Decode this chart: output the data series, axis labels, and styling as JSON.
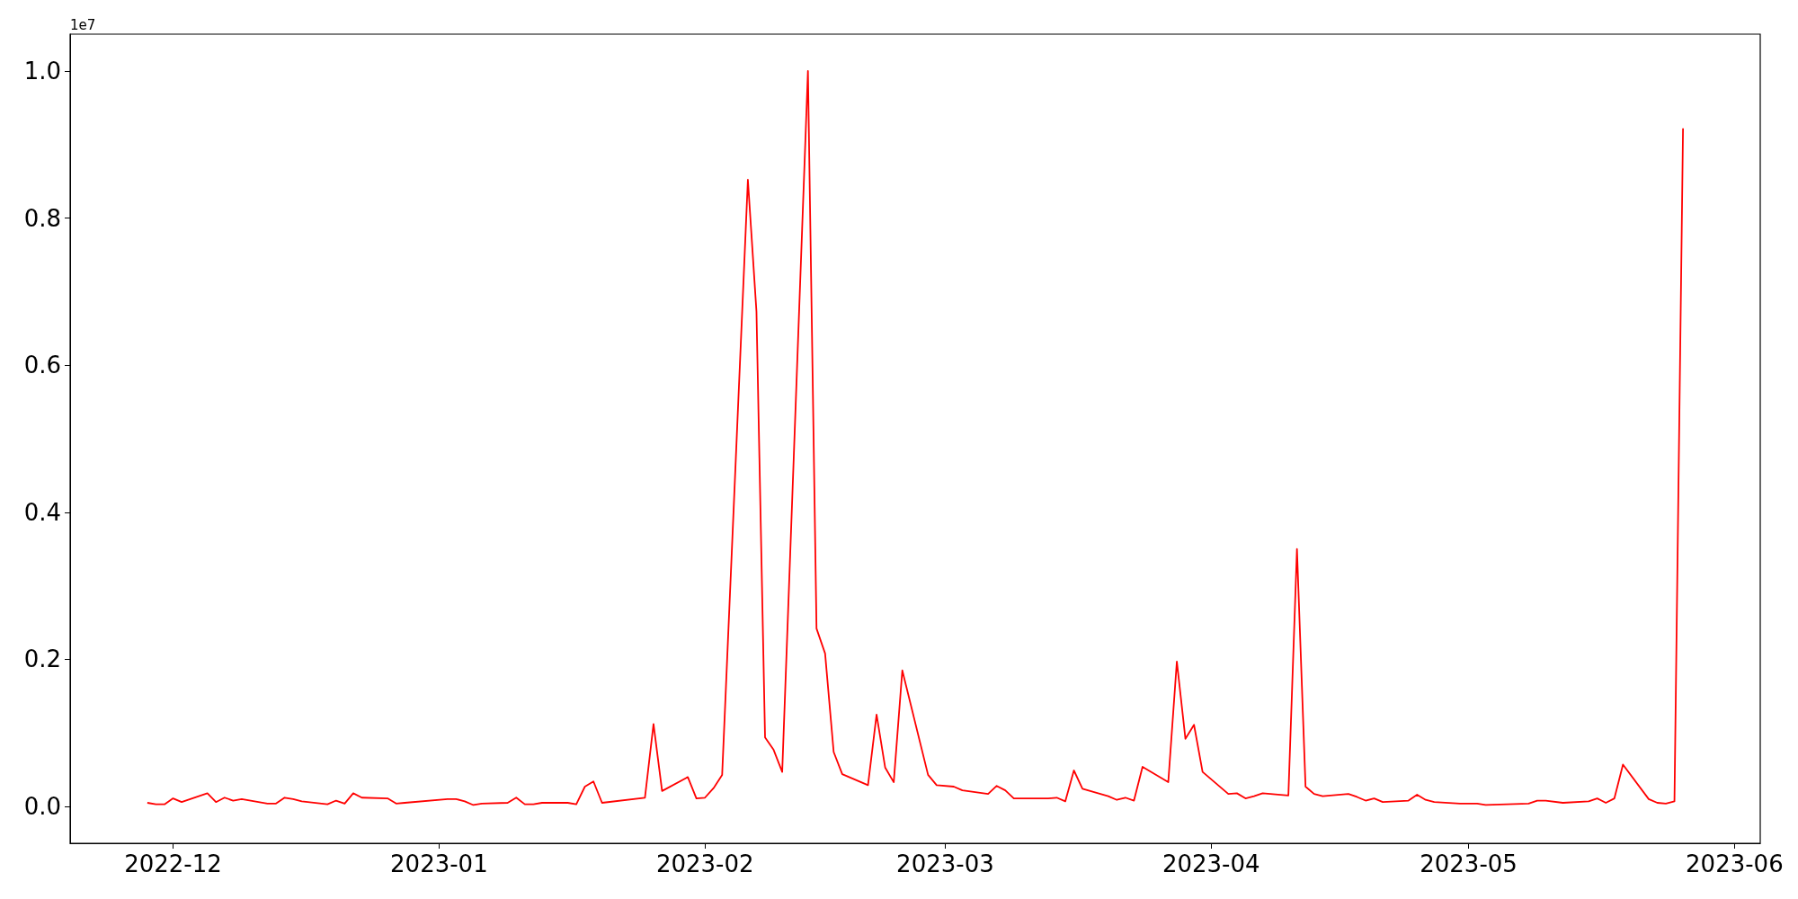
{
  "chart_data": {
    "type": "line",
    "annotations": [
      "1e7"
    ],
    "x": [
      "2022-11-28",
      "2022-11-29",
      "2022-11-30",
      "2022-12-01",
      "2022-12-02",
      "2022-12-05",
      "2022-12-06",
      "2022-12-07",
      "2022-12-08",
      "2022-12-09",
      "2022-12-12",
      "2022-12-13",
      "2022-12-14",
      "2022-12-15",
      "2022-12-16",
      "2022-12-19",
      "2022-12-20",
      "2022-12-21",
      "2022-12-22",
      "2022-12-23",
      "2022-12-26",
      "2022-12-27",
      "2022-12-28",
      "2023-01-02",
      "2023-01-03",
      "2023-01-04",
      "2023-01-05",
      "2023-01-06",
      "2023-01-09",
      "2023-01-10",
      "2023-01-11",
      "2023-01-12",
      "2023-01-13",
      "2023-01-16",
      "2023-01-17",
      "2023-01-18",
      "2023-01-19",
      "2023-01-20",
      "2023-01-25",
      "2023-01-26",
      "2023-01-27",
      "2023-01-30",
      "2023-01-31",
      "2023-02-01",
      "2023-02-02",
      "2023-02-03",
      "2023-02-06",
      "2023-02-07",
      "2023-02-08",
      "2023-02-09",
      "2023-02-10",
      "2023-02-13",
      "2023-02-14",
      "2023-02-15",
      "2023-02-16",
      "2023-02-17",
      "2023-02-20",
      "2023-02-21",
      "2023-02-22",
      "2023-02-23",
      "2023-02-24",
      "2023-02-27",
      "2023-02-28",
      "2023-03-02",
      "2023-03-03",
      "2023-03-06",
      "2023-03-07",
      "2023-03-08",
      "2023-03-09",
      "2023-03-10",
      "2023-03-13",
      "2023-03-14",
      "2023-03-15",
      "2023-03-16",
      "2023-03-17",
      "2023-03-20",
      "2023-03-21",
      "2023-03-22",
      "2023-03-23",
      "2023-03-24",
      "2023-03-27",
      "2023-03-28",
      "2023-03-29",
      "2023-03-30",
      "2023-03-31",
      "2023-04-03",
      "2023-04-04",
      "2023-04-05",
      "2023-04-06",
      "2023-04-07",
      "2023-04-10",
      "2023-04-11",
      "2023-04-12",
      "2023-04-13",
      "2023-04-14",
      "2023-04-17",
      "2023-04-18",
      "2023-04-19",
      "2023-04-20",
      "2023-04-21",
      "2023-04-24",
      "2023-04-25",
      "2023-04-26",
      "2023-04-27",
      "2023-04-30",
      "2023-05-02",
      "2023-05-03",
      "2023-05-08",
      "2023-05-09",
      "2023-05-10",
      "2023-05-12",
      "2023-05-15",
      "2023-05-16",
      "2023-05-17",
      "2023-05-18",
      "2023-05-19",
      "2023-05-22",
      "2023-05-23",
      "2023-05-24",
      "2023-05-25",
      "2023-05-26"
    ],
    "series": [
      {
        "color": "#ff0000",
        "values": [
          0.005,
          0.003,
          0.003,
          0.011,
          0.006,
          0.018,
          0.006,
          0.012,
          0.008,
          0.01,
          0.004,
          0.004,
          0.012,
          0.01,
          0.007,
          0.003,
          0.008,
          0.004,
          0.018,
          0.012,
          0.011,
          0.004,
          0.005,
          0.01,
          0.01,
          0.007,
          0.002,
          0.004,
          0.005,
          0.012,
          0.003,
          0.003,
          0.005,
          0.005,
          0.003,
          0.027,
          0.034,
          0.005,
          0.012,
          0.112,
          0.021,
          0.04,
          0.011,
          0.012,
          0.025,
          0.043,
          0.852,
          0.673,
          0.094,
          0.077,
          0.047,
          1.0,
          0.242,
          0.208,
          0.074,
          0.044,
          0.029,
          0.125,
          0.053,
          0.033,
          0.185,
          0.043,
          0.029,
          0.027,
          0.022,
          0.017,
          0.028,
          0.022,
          0.011,
          0.011,
          0.011,
          0.012,
          0.007,
          0.049,
          0.024,
          0.014,
          0.009,
          0.012,
          0.008,
          0.054,
          0.033,
          0.197,
          0.092,
          0.111,
          0.047,
          0.017,
          0.018,
          0.011,
          0.014,
          0.018,
          0.015,
          0.35,
          0.027,
          0.017,
          0.014,
          0.017,
          0.013,
          0.008,
          0.011,
          0.006,
          0.008,
          0.016,
          0.009,
          0.006,
          0.004,
          0.004,
          0.002,
          0.004,
          0.008,
          0.008,
          0.005,
          0.007,
          0.011,
          0.005,
          0.011,
          0.057,
          0.01,
          0.005,
          0.004,
          0.007,
          0.922
        ]
      }
    ],
    "xlim": [
      "2022-11-19",
      "2023-06-04"
    ],
    "xticks": [
      {
        "value": "2022-12-01",
        "label": "2022-12"
      },
      {
        "value": "2023-01-01",
        "label": "2023-01"
      },
      {
        "value": "2023-02-01",
        "label": "2023-02"
      },
      {
        "value": "2023-03-01",
        "label": "2023-03"
      },
      {
        "value": "2023-04-01",
        "label": "2023-04"
      },
      {
        "value": "2023-05-01",
        "label": "2023-05"
      },
      {
        "value": "2023-06-01",
        "label": "2023-06"
      }
    ],
    "ylim": [
      -0.05,
      1.05
    ],
    "yticks": [
      {
        "value": 0,
        "label": "0.0"
      },
      0.2,
      0.4,
      0.6,
      0.8,
      {
        "value": 1,
        "label": "1.0"
      }
    ],
    "grid": false,
    "marker": "none",
    "line_style": "solid"
  }
}
